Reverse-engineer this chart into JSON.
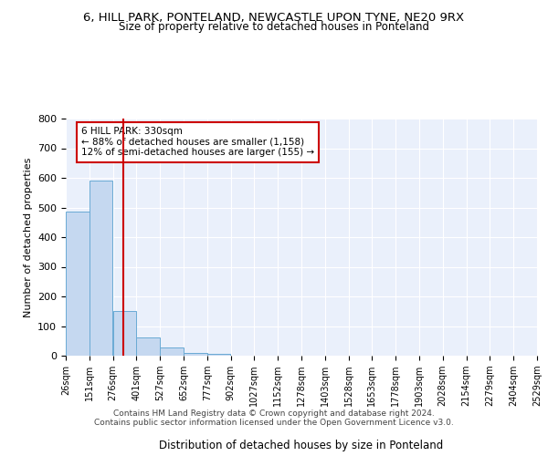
{
  "title": "6, HILL PARK, PONTELAND, NEWCASTLE UPON TYNE, NE20 9RX",
  "subtitle": "Size of property relative to detached houses in Ponteland",
  "xlabel": "Distribution of detached houses by size in Ponteland",
  "ylabel": "Number of detached properties",
  "bar_values": [
    485,
    590,
    150,
    62,
    28,
    10,
    5,
    0,
    0,
    0,
    0,
    0,
    0,
    0,
    0,
    0,
    0,
    0,
    0,
    0
  ],
  "bar_left_edges": [
    26,
    151,
    276,
    401,
    527,
    652,
    777,
    902,
    1027,
    1152,
    1278,
    1403,
    1528,
    1653,
    1778,
    1903,
    2028,
    2154,
    2279,
    2404
  ],
  "bar_widths": [
    125,
    125,
    125,
    126,
    125,
    125,
    125,
    125,
    125,
    126,
    125,
    125,
    125,
    125,
    125,
    125,
    126,
    125,
    125,
    125
  ],
  "xtick_labels": [
    "26sqm",
    "151sqm",
    "276sqm",
    "401sqm",
    "527sqm",
    "652sqm",
    "777sqm",
    "902sqm",
    "1027sqm",
    "1152sqm",
    "1278sqm",
    "1403sqm",
    "1528sqm",
    "1653sqm",
    "1778sqm",
    "1903sqm",
    "2028sqm",
    "2154sqm",
    "2279sqm",
    "2404sqm",
    "2529sqm"
  ],
  "xtick_positions": [
    26,
    151,
    276,
    401,
    527,
    652,
    777,
    902,
    1027,
    1152,
    1278,
    1403,
    1528,
    1653,
    1778,
    1903,
    2028,
    2154,
    2279,
    2404,
    2529
  ],
  "bar_color": "#c5d8f0",
  "bar_edge_color": "#6aaad4",
  "vline_x": 330,
  "vline_color": "#cc0000",
  "annotation_line1": "6 HILL PARK: 330sqm",
  "annotation_line2": "← 88% of detached houses are smaller (1,158)",
  "annotation_line3": "12% of semi-detached houses are larger (155) →",
  "annotation_box_color": "white",
  "annotation_box_edge": "#cc0000",
  "ylim": [
    0,
    800
  ],
  "yticks": [
    0,
    100,
    200,
    300,
    400,
    500,
    600,
    700,
    800
  ],
  "xlim": [
    26,
    2529
  ],
  "background_color": "#eaf0fb",
  "grid_color": "white",
  "footer_line1": "Contains HM Land Registry data © Crown copyright and database right 2024.",
  "footer_line2": "Contains public sector information licensed under the Open Government Licence v3.0."
}
